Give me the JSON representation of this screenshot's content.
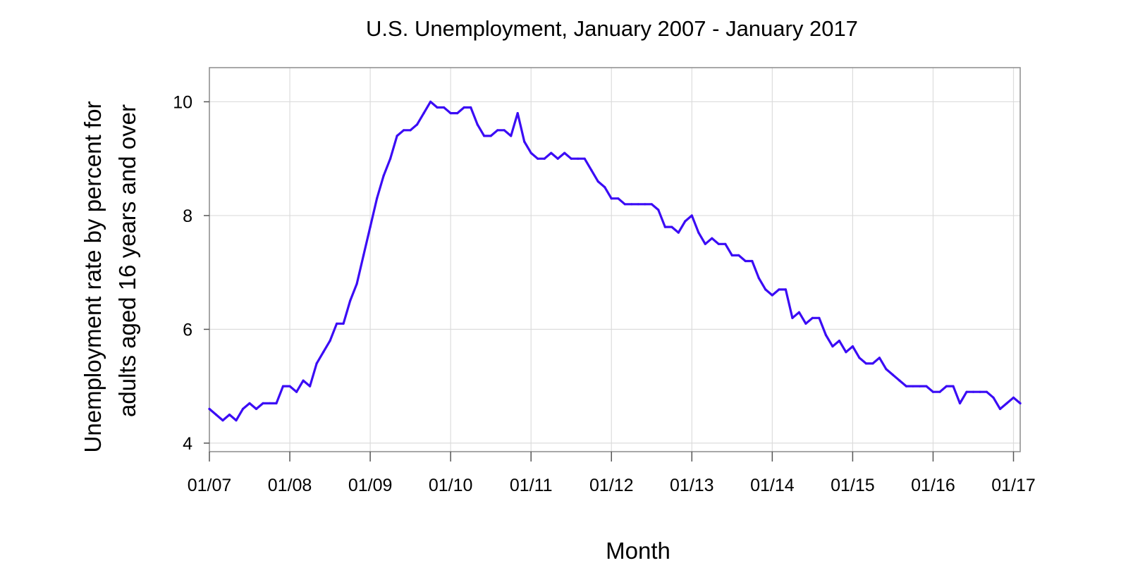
{
  "chart_data": {
    "type": "line",
    "title": "U.S. Unemployment, January 2007 - January 2017",
    "xlabel": "Month",
    "ylabel_lines": [
      "Unemployment rate by percent for",
      "adults aged 16 years and over"
    ],
    "x_tick_labels": [
      "01/07",
      "01/08",
      "01/09",
      "01/10",
      "01/11",
      "01/12",
      "01/13",
      "01/14",
      "01/15",
      "01/16",
      "01/17"
    ],
    "y_tick_labels": [
      "4",
      "6",
      "8",
      "10"
    ],
    "ylim": [
      3.85,
      10.6
    ],
    "xlim": [
      "2007-01",
      "2017-02"
    ],
    "grid": true,
    "line_color": "#3b0cf5",
    "series": [
      {
        "x": [
          "2007-01",
          "2007-02",
          "2007-03",
          "2007-04",
          "2007-05",
          "2007-06",
          "2007-07",
          "2007-08",
          "2007-09",
          "2007-10",
          "2007-11",
          "2007-12",
          "2008-01",
          "2008-02",
          "2008-03",
          "2008-04",
          "2008-05",
          "2008-06",
          "2008-07",
          "2008-08",
          "2008-09",
          "2008-10",
          "2008-11",
          "2008-12",
          "2009-01",
          "2009-02",
          "2009-03",
          "2009-04",
          "2009-05",
          "2009-06",
          "2009-07",
          "2009-08",
          "2009-09",
          "2009-10",
          "2009-11",
          "2009-12",
          "2010-01",
          "2010-02",
          "2010-03",
          "2010-04",
          "2010-05",
          "2010-06",
          "2010-07",
          "2010-08",
          "2010-09",
          "2010-10",
          "2010-11",
          "2010-12",
          "2011-01",
          "2011-02",
          "2011-03",
          "2011-04",
          "2011-05",
          "2011-06",
          "2011-07",
          "2011-08",
          "2011-09",
          "2011-10",
          "2011-11",
          "2011-12",
          "2012-01",
          "2012-02",
          "2012-03",
          "2012-04",
          "2012-05",
          "2012-06",
          "2012-07",
          "2012-08",
          "2012-09",
          "2012-10",
          "2012-11",
          "2012-12",
          "2013-01",
          "2013-02",
          "2013-03",
          "2013-04",
          "2013-05",
          "2013-06",
          "2013-07",
          "2013-08",
          "2013-09",
          "2013-10",
          "2013-11",
          "2013-12",
          "2014-01",
          "2014-02",
          "2014-03",
          "2014-04",
          "2014-05",
          "2014-06",
          "2014-07",
          "2014-08",
          "2014-09",
          "2014-10",
          "2014-11",
          "2014-12",
          "2015-01",
          "2015-02",
          "2015-03",
          "2015-04",
          "2015-05",
          "2015-06",
          "2015-07",
          "2015-08",
          "2015-09",
          "2015-10",
          "2015-11",
          "2015-12",
          "2016-01",
          "2016-02",
          "2016-03",
          "2016-04",
          "2016-05",
          "2016-06",
          "2016-07",
          "2016-08",
          "2016-09",
          "2016-10",
          "2016-11",
          "2016-12",
          "2017-01",
          "2017-02"
        ],
        "values": [
          4.6,
          4.5,
          4.4,
          4.5,
          4.4,
          4.6,
          4.7,
          4.6,
          4.7,
          4.7,
          4.7,
          5.0,
          5.0,
          4.9,
          5.1,
          5.0,
          5.4,
          5.6,
          5.8,
          6.1,
          6.1,
          6.5,
          6.8,
          7.3,
          7.8,
          8.3,
          8.7,
          9.0,
          9.4,
          9.5,
          9.5,
          9.6,
          9.8,
          10.0,
          9.9,
          9.9,
          9.8,
          9.8,
          9.9,
          9.9,
          9.6,
          9.4,
          9.4,
          9.5,
          9.5,
          9.4,
          9.8,
          9.3,
          9.1,
          9.0,
          9.0,
          9.1,
          9.0,
          9.1,
          9.0,
          9.0,
          9.0,
          8.8,
          8.6,
          8.5,
          8.3,
          8.3,
          8.2,
          8.2,
          8.2,
          8.2,
          8.2,
          8.1,
          7.8,
          7.8,
          7.7,
          7.9,
          8.0,
          7.7,
          7.5,
          7.6,
          7.5,
          7.5,
          7.3,
          7.3,
          7.2,
          7.2,
          6.9,
          6.7,
          6.6,
          6.7,
          6.7,
          6.2,
          6.3,
          6.1,
          6.2,
          6.2,
          5.9,
          5.7,
          5.8,
          5.6,
          5.7,
          5.5,
          5.4,
          5.4,
          5.5,
          5.3,
          5.2,
          5.1,
          5.0,
          5.0,
          5.0,
          5.0,
          4.9,
          4.9,
          5.0,
          5.0,
          4.7,
          4.9,
          4.9,
          4.9,
          4.9,
          4.8,
          4.6,
          4.7,
          4.8,
          4.7
        ]
      }
    ]
  }
}
